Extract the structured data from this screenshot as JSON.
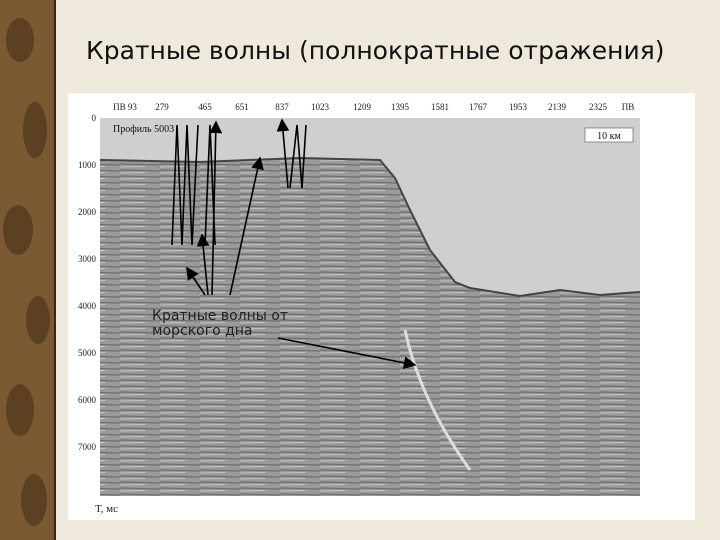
{
  "title": "Кратные волны (полнократные отражения)",
  "figure": {
    "top_labels": [
      "ПВ 93",
      279,
      465,
      651,
      837,
      1023,
      1209,
      1395,
      1581,
      1767,
      1953,
      2139,
      2325,
      "ПВ"
    ],
    "left_labels": [
      0,
      1000,
      2000,
      3000,
      4000,
      5000,
      6000,
      7000
    ],
    "profile_label": "Профиль 5003",
    "scale_label": "10 км",
    "axis_unit": "Т, мс",
    "annotation": "Кратные волны от морского дна"
  }
}
